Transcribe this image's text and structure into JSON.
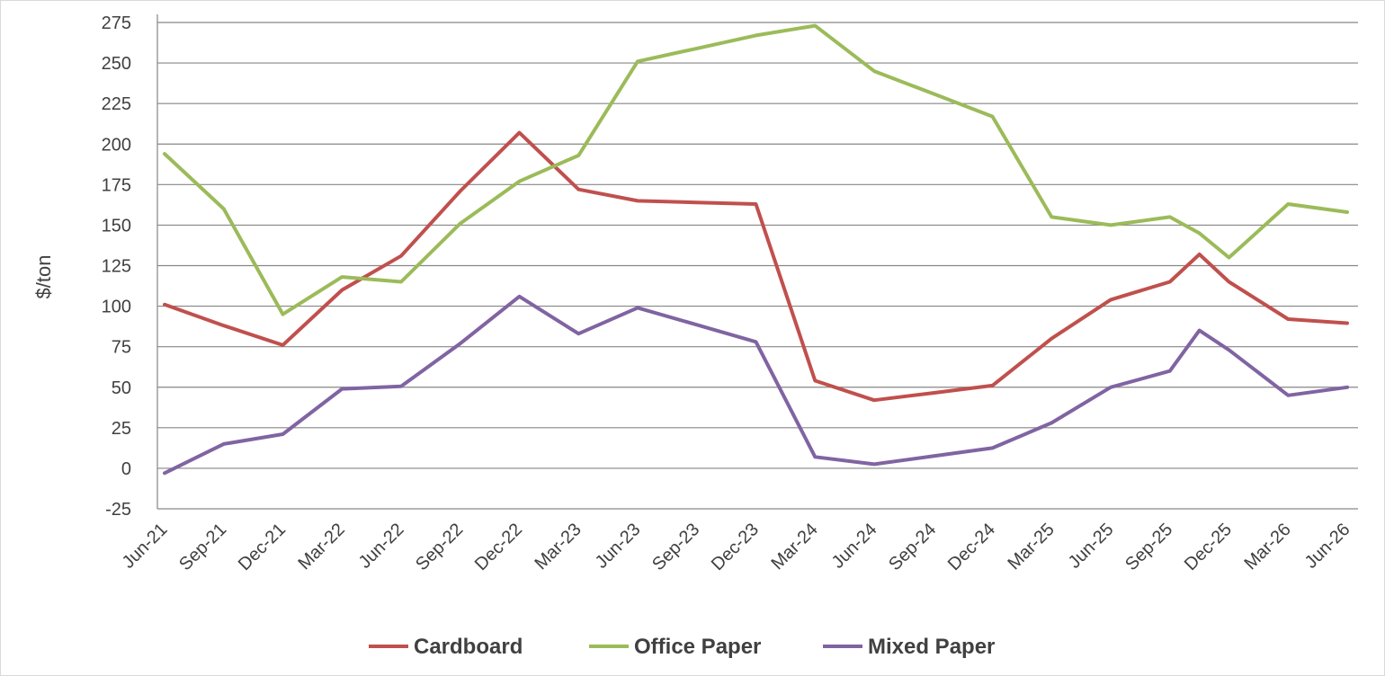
{
  "chart_data": {
    "type": "line",
    "ylabel": "$/ton",
    "xlabel": "",
    "ylim": [
      -25,
      275
    ],
    "y_ticks": [
      -25,
      0,
      25,
      50,
      75,
      100,
      125,
      150,
      175,
      200,
      225,
      250,
      275
    ],
    "categories": [
      "Jun-21",
      "Sep-21",
      "Dec-21",
      "Mar-22",
      "Jun-22",
      "Sep-22",
      "Dec-22",
      "Mar-23",
      "Jun-23",
      "Sep-23",
      "Dec-23",
      "Mar-24",
      "Jun-24",
      "Sep-24",
      "Dec-24",
      "Mar-25",
      "Jun-25",
      "Sep-25",
      "Dec-25",
      "Mar-26",
      "Jun-26"
    ],
    "grid": "horizontal",
    "legend_position": "bottom",
    "series": [
      {
        "name": "Cardboard",
        "color": "#c0504d",
        "points": [
          [
            0,
            101
          ],
          [
            1,
            88
          ],
          [
            2,
            76
          ],
          [
            3,
            110
          ],
          [
            4,
            131
          ],
          [
            5,
            171
          ],
          [
            6,
            207
          ],
          [
            7,
            172
          ],
          [
            8,
            165
          ],
          [
            9,
            164
          ],
          [
            10,
            163
          ],
          [
            11,
            54
          ],
          [
            12,
            42
          ],
          [
            13,
            46.5
          ],
          [
            14,
            51
          ],
          [
            15,
            80
          ],
          [
            16,
            104
          ],
          [
            17,
            115
          ],
          [
            17.5,
            132
          ],
          [
            18,
            115
          ],
          [
            19,
            92
          ],
          [
            20,
            89.5
          ]
        ]
      },
      {
        "name": "Office Paper",
        "color": "#9bbb59",
        "points": [
          [
            0,
            194
          ],
          [
            1,
            160
          ],
          [
            2,
            95
          ],
          [
            3,
            118
          ],
          [
            4,
            115
          ],
          [
            5,
            151
          ],
          [
            6,
            177
          ],
          [
            7,
            193
          ],
          [
            8,
            251
          ],
          [
            9,
            259
          ],
          [
            10,
            267
          ],
          [
            11,
            273
          ],
          [
            12,
            245
          ],
          [
            13,
            231
          ],
          [
            14,
            217
          ],
          [
            15,
            155
          ],
          [
            16,
            150
          ],
          [
            17,
            155
          ],
          [
            17.5,
            145
          ],
          [
            18,
            130
          ],
          [
            19,
            163
          ],
          [
            20,
            158
          ]
        ]
      },
      {
        "name": "Mixed Paper",
        "color": "#8064a2",
        "points": [
          [
            0,
            -3
          ],
          [
            1,
            15
          ],
          [
            2,
            21
          ],
          [
            3,
            49
          ],
          [
            4,
            50.5
          ],
          [
            5,
            77
          ],
          [
            6,
            106
          ],
          [
            7,
            83
          ],
          [
            8,
            99
          ],
          [
            9,
            88.5
          ],
          [
            10,
            78
          ],
          [
            11,
            7
          ],
          [
            12,
            2.5
          ],
          [
            13,
            7.5
          ],
          [
            14,
            12.5
          ],
          [
            15,
            28
          ],
          [
            16,
            50
          ],
          [
            17,
            60
          ],
          [
            17.5,
            85
          ],
          [
            18,
            73
          ],
          [
            19,
            45
          ],
          [
            20,
            50
          ]
        ]
      }
    ]
  }
}
